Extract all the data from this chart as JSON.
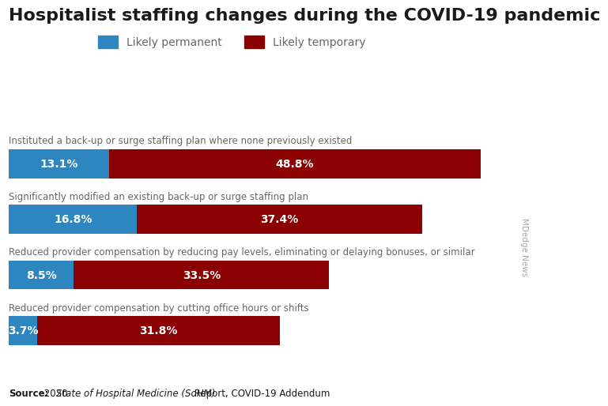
{
  "title": "Hospitalist staffing changes during the COVID-19 pandemic",
  "categories": [
    "Instituted a back-up or surge staffing plan where none previously existed",
    "Significantly modified an existing back-up or surge staffing plan",
    "Reduced provider compensation by reducing pay levels, eliminating or delaying bonuses, or similar",
    "Reduced provider compensation by cutting office hours or shifts"
  ],
  "permanent_values": [
    13.1,
    16.8,
    8.5,
    3.7
  ],
  "temporary_values": [
    48.8,
    37.4,
    33.5,
    31.8
  ],
  "permanent_color": "#2E86C1",
  "temporary_color": "#8B0000",
  "permanent_label": "Likely permanent",
  "temporary_label": "Likely temporary",
  "source_bold": "Source:",
  "source_normal": " 2020 ",
  "source_italic": "State of Hospital Medicine (SoHM)",
  "source_end": " Report, COVID-19 Addendum",
  "watermark": "MDedge News",
  "background_color": "#FFFFFF",
  "bar_height": 0.52,
  "max_value": 65,
  "label_color_gray": "#666666",
  "title_fontsize": 16,
  "cat_fontsize": 8.5,
  "bar_label_fontsize": 10,
  "legend_fontsize": 10,
  "source_fontsize": 8.5,
  "watermark_fontsize": 7.5
}
